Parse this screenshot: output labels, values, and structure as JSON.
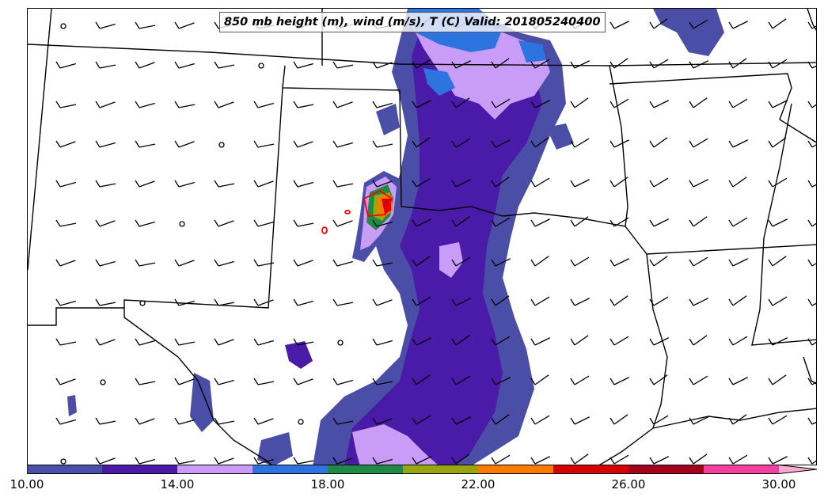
{
  "title": "850 mb height (m), wind (m/s), T (C) Valid: 201805240400",
  "colorbar": {
    "tick_labels": [
      "10.00",
      "14.00",
      "18.00",
      "22.00",
      "26.00",
      "30.00"
    ],
    "tick_values": [
      10,
      14,
      18,
      22,
      26,
      30
    ],
    "min": 10,
    "max": 30,
    "extend": "max",
    "levels": [
      10,
      12,
      14,
      16,
      18,
      20,
      22,
      24,
      26,
      28,
      30
    ],
    "colors": [
      "#4b4ea6",
      "#4a1aa8",
      "#c99cf7",
      "#2e74e0",
      "#1e8a46",
      "#9aa60e",
      "#ff7a00",
      "#d60000",
      "#a3001c",
      "#f23fa0",
      "#ffa8d4"
    ]
  },
  "map": {
    "region": "Southern Plains, United States",
    "overlay": "wind barbs",
    "contour_color": "#ff0000"
  }
}
